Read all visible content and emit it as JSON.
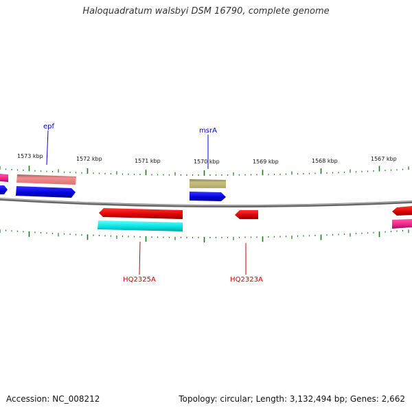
{
  "title": "Haloquadratum walsbyi DSM 16790, complete genome",
  "ruler": {
    "labels": [
      "1573 kbp",
      "1572 kbp",
      "1571 kbp",
      "1570 kbp",
      "1569 kbp",
      "1568 kbp",
      "1567 kbp"
    ]
  },
  "genes": {
    "epf": "epf",
    "msrA": "msrA",
    "HQ2325A": "HQ2325A",
    "HQ2323A": "HQ2323A"
  },
  "footer": {
    "accession": "Accession: NC_008212",
    "summary": "Topology: circular; Length: 3,132,494 bp; Genes: 2,662"
  },
  "colors": {
    "backbone": "#808080",
    "tick": "#1a7a1a",
    "forward_gene": "#0000ee",
    "reverse_gene": "#ee0000",
    "rna_pink": "#ee3399",
    "salmon": "#e88080",
    "olive": "#b8b070",
    "cyan": "#00e5e5",
    "label_blue": "#0000cc",
    "label_red": "#cc0000"
  }
}
